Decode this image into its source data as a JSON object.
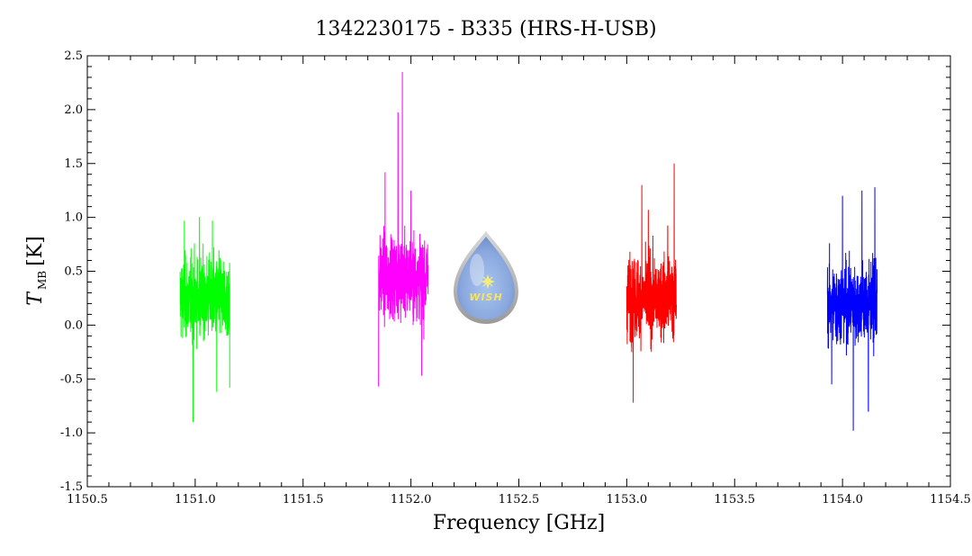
{
  "chart_data": {
    "type": "line",
    "title": "1342230175 - B335 (HRS-H-USB)",
    "xlabel": "Frequency [GHz]",
    "ylabel": {
      "symbol": "T",
      "subscript": "MB",
      "unit": "[K]"
    },
    "xlim": [
      1150.5,
      1154.5
    ],
    "ylim": [
      -1.5,
      2.5
    ],
    "xticks": [
      1150.5,
      1151.0,
      1151.5,
      1152.0,
      1152.5,
      1153.0,
      1153.5,
      1154.0,
      1154.5
    ],
    "xtick_labels": [
      "1150.5",
      "1151.0",
      "1151.5",
      "1152.0",
      "1152.5",
      "1153.0",
      "1153.5",
      "1154.0",
      "1154.5"
    ],
    "yticks": [
      -1.5,
      -1.0,
      -0.5,
      0.0,
      0.5,
      1.0,
      1.5,
      2.0,
      2.5
    ],
    "ytick_labels": [
      "-1.5",
      "-1.0",
      "-0.5",
      "0.0",
      "0.5",
      "1.0",
      "1.5",
      "2.0",
      "2.5"
    ],
    "grid": false,
    "logo_text": "WISH",
    "series": [
      {
        "color": "#00ff00",
        "x_range": [
          1150.93,
          1151.16
        ],
        "center": 0.25,
        "peaks": [
          {
            "x": 1150.95,
            "y": 0.97
          },
          {
            "x": 1150.99,
            "y": -0.9
          },
          {
            "x": 1151.02,
            "y": 1.0
          },
          {
            "x": 1151.08,
            "y": 0.97
          },
          {
            "x": 1151.1,
            "y": -0.62
          },
          {
            "x": 1151.16,
            "y": -0.58
          }
        ]
      },
      {
        "color": "#ff00ff",
        "x_range": [
          1151.85,
          1152.08
        ],
        "center": 0.45,
        "peaks": [
          {
            "x": 1151.85,
            "y": -0.57
          },
          {
            "x": 1151.88,
            "y": 1.42
          },
          {
            "x": 1151.94,
            "y": 1.97
          },
          {
            "x": 1151.96,
            "y": 2.35
          },
          {
            "x": 1152.0,
            "y": 1.25
          },
          {
            "x": 1152.05,
            "y": -0.47
          }
        ]
      },
      {
        "color": "#ff0000",
        "x_range": [
          1153.0,
          1153.23
        ],
        "center": 0.25,
        "peaks": [
          {
            "x": 1153.03,
            "y": -0.72
          },
          {
            "x": 1153.07,
            "y": 1.3
          },
          {
            "x": 1153.1,
            "y": 1.07
          },
          {
            "x": 1153.15,
            "y": 0.5
          },
          {
            "x": 1153.19,
            "y": 0.92
          },
          {
            "x": 1153.22,
            "y": 1.5
          }
        ]
      },
      {
        "color": "#0000ff",
        "x_range": [
          1153.93,
          1154.16
        ],
        "center": 0.2,
        "peaks": [
          {
            "x": 1153.95,
            "y": -0.55
          },
          {
            "x": 1154.0,
            "y": 1.2
          },
          {
            "x": 1154.05,
            "y": -0.98
          },
          {
            "x": 1154.09,
            "y": 1.25
          },
          {
            "x": 1154.12,
            "y": -0.8
          },
          {
            "x": 1154.15,
            "y": 1.28
          }
        ]
      }
    ]
  }
}
